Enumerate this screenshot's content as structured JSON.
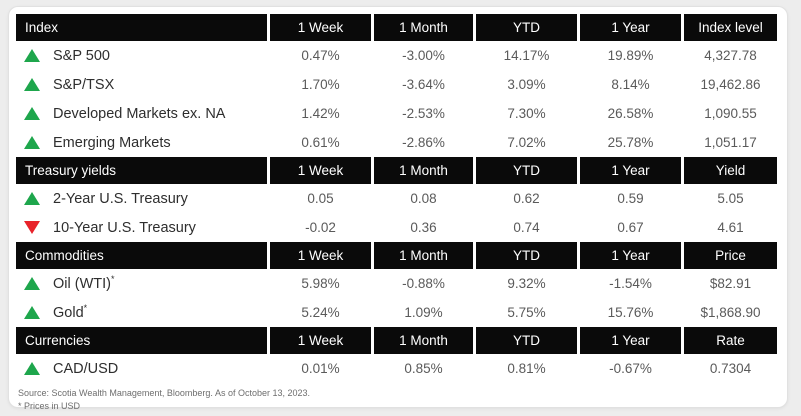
{
  "colors": {
    "up": "#1ea64c",
    "down": "#e8232a",
    "header_bg": "#0a0a0a"
  },
  "sections": [
    {
      "name": "index",
      "title": "Index",
      "columns": [
        "1 Week",
        "1 Month",
        "YTD",
        "1 Year",
        "Index level"
      ],
      "rows": [
        {
          "direction": "up",
          "label": "S&P 500",
          "values": [
            "0.47%",
            "-3.00%",
            "14.17%",
            "19.89%",
            "4,327.78"
          ]
        },
        {
          "direction": "up",
          "label": "S&P/TSX",
          "values": [
            "1.70%",
            "-3.64%",
            "3.09%",
            "8.14%",
            "19,462.86"
          ]
        },
        {
          "direction": "up",
          "label": "Developed Markets ex. NA",
          "values": [
            "1.42%",
            "-2.53%",
            "7.30%",
            "26.58%",
            "1,090.55"
          ]
        },
        {
          "direction": "up",
          "label": "Emerging Markets",
          "values": [
            "0.61%",
            "-2.86%",
            "7.02%",
            "25.78%",
            "1,051.17"
          ]
        }
      ]
    },
    {
      "name": "treasury-yields",
      "title": "Treasury yields",
      "columns": [
        "1 Week",
        "1 Month",
        "YTD",
        "1 Year",
        "Yield"
      ],
      "rows": [
        {
          "direction": "up",
          "label": "2-Year U.S. Treasury",
          "values": [
            "0.05",
            "0.08",
            "0.62",
            "0.59",
            "5.05"
          ]
        },
        {
          "direction": "down",
          "label": "10-Year U.S. Treasury",
          "values": [
            "-0.02",
            "0.36",
            "0.74",
            "0.67",
            "4.61"
          ]
        }
      ]
    },
    {
      "name": "commodities",
      "title": "Commodities",
      "columns": [
        "1 Week",
        "1 Month",
        "YTD",
        "1 Year",
        "Price"
      ],
      "rows": [
        {
          "direction": "up",
          "label": "Oil (WTI)*",
          "values": [
            "5.98%",
            "-0.88%",
            "9.32%",
            "-1.54%",
            "$82.91"
          ]
        },
        {
          "direction": "up",
          "label": "Gold*",
          "values": [
            "5.24%",
            "1.09%",
            "5.75%",
            "15.76%",
            "$1,868.90"
          ]
        }
      ]
    },
    {
      "name": "currencies",
      "title": "Currencies",
      "columns": [
        "1 Week",
        "1 Month",
        "YTD",
        "1 Year",
        "Rate"
      ],
      "rows": [
        {
          "direction": "up",
          "label": "CAD/USD",
          "values": [
            "0.01%",
            "0.85%",
            "0.81%",
            "-0.67%",
            "0.7304"
          ]
        }
      ]
    }
  ],
  "footer": {
    "source": "Source: Scotia Wealth Management, Bloomberg. As of October 13, 2023.",
    "note": "* Prices in USD"
  }
}
